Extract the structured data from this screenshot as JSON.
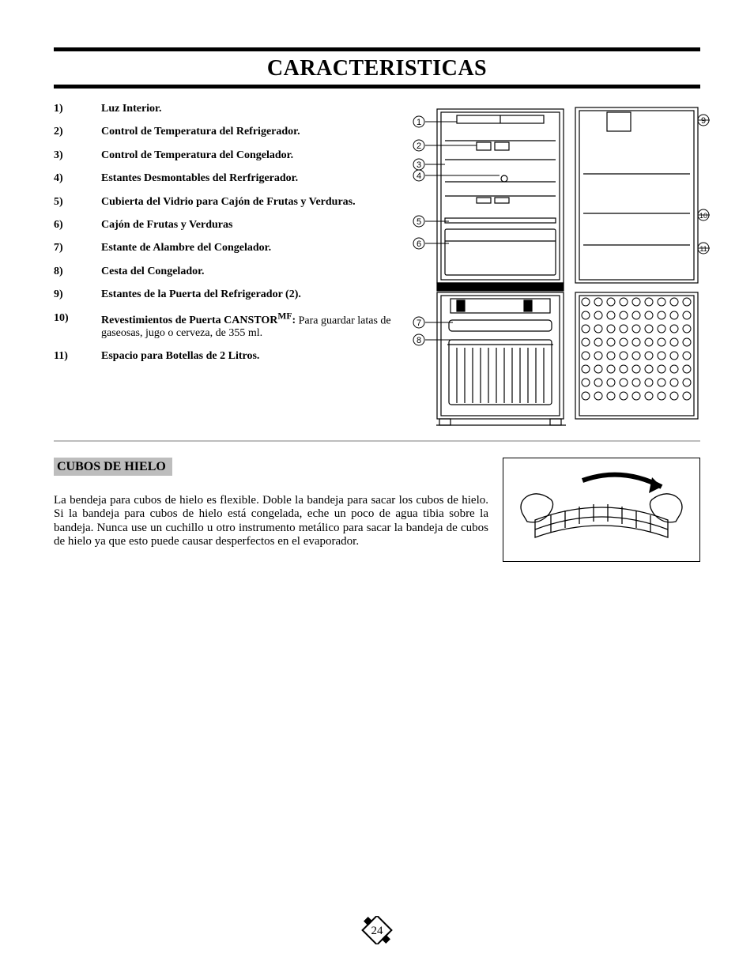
{
  "title": "CARACTERISTICAS",
  "features": [
    {
      "n": "1)",
      "text": "Luz Interior.",
      "bold": true
    },
    {
      "n": "2)",
      "text": "Control de Temperatura del Refrigerador.",
      "bold": true
    },
    {
      "n": "3)",
      "text": "Control de Temperatura del Congelador.",
      "bold": true
    },
    {
      "n": "4)",
      "text": "Estantes Desmontables del Rerfrigerador.",
      "bold": true
    },
    {
      "n": "5)",
      "text": "Cubierta del Vidrio para Cajón de Frutas y Verduras.",
      "bold": true
    },
    {
      "n": "6)",
      "text": "Cajón de Frutas y Verduras",
      "bold": true
    },
    {
      "n": "7)",
      "text": "Estante de Alambre del Congelador.",
      "bold": true
    },
    {
      "n": "8)",
      "text": "Cesta del Congelador.",
      "bold": true
    },
    {
      "n": "9)",
      "text": "Estantes de la Puerta del Refrigerador (2).",
      "bold": true
    },
    {
      "n": "10)",
      "text_html": "<b>Revestimientos de Puerta CANSTOR<sup>MF</sup>:</b> Para guardar latas de gaseosas, jugo o cerveza, de 355 ml."
    },
    {
      "n": "11)",
      "text": "Espacio para Botellas de 2 Litros.",
      "bold": true
    }
  ],
  "callouts_left": [
    "1",
    "2",
    "3",
    "4",
    "5",
    "6",
    "7",
    "8"
  ],
  "callouts_right": [
    "9",
    "10",
    "11"
  ],
  "section2": {
    "heading": "CUBOS DE HIELO",
    "paragraph": "La bendeja para cubos de hielo es flexible. Doble la bandeja para sacar los cubos de hielo. Si la bandeja para cubos de hielo está congelada, eche un poco de agua tibia sobre la bandeja. Nunca use un cuchillo u otro instrumento metálico para sacar la bandeja de cubos de hielo ya que esto puede causar desperfectos en el evaporador."
  },
  "page_number": "24",
  "colors": {
    "rule": "#000000",
    "grey": "#bdbdbd",
    "bg": "#ffffff"
  }
}
